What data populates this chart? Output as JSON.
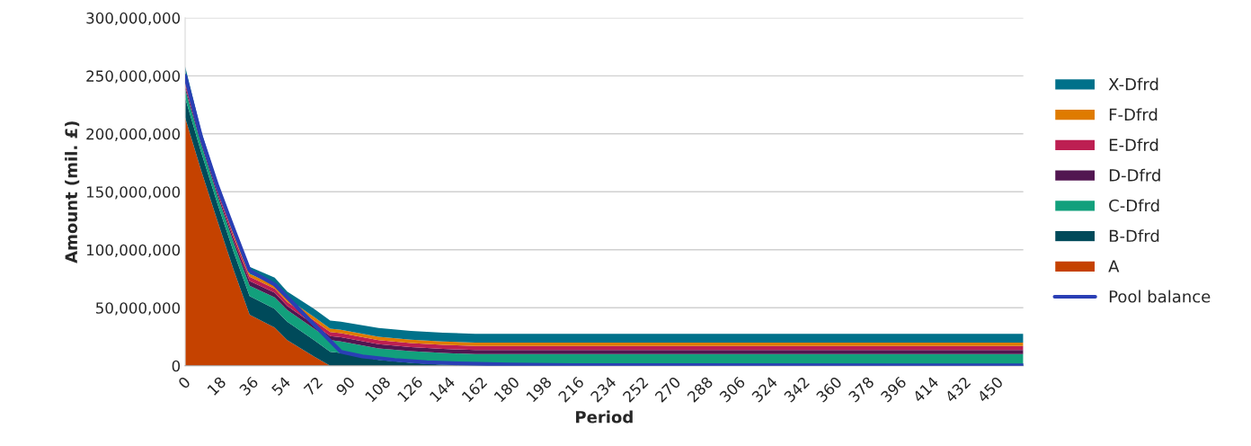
{
  "chart_data": {
    "type": "area",
    "stacked": true,
    "xlabel": "Period",
    "ylabel": "Amount (mil. £)",
    "x": [
      0,
      9,
      18,
      27,
      36,
      50,
      57,
      72,
      81,
      87,
      108,
      126,
      144,
      162,
      468
    ],
    "xlim": [
      0,
      468
    ],
    "xticks": [
      0,
      18,
      36,
      54,
      72,
      90,
      108,
      126,
      144,
      162,
      180,
      198,
      216,
      234,
      252,
      270,
      288,
      306,
      324,
      342,
      360,
      378,
      396,
      414,
      432,
      450
    ],
    "ylim": [
      0,
      300000000
    ],
    "yticks": [
      {
        "value": 0,
        "label": "0"
      },
      {
        "value": 50000000,
        "label": "50,000,000"
      },
      {
        "value": 100000000,
        "label": "100,000,000"
      },
      {
        "value": 150000000,
        "label": "150,000,000"
      },
      {
        "value": 200000000,
        "label": "200,000,000"
      },
      {
        "value": 250000000,
        "label": "250,000,000"
      },
      {
        "value": 300000000,
        "label": "300,000,000"
      }
    ],
    "grid": "y",
    "legend": "right",
    "series": [
      {
        "name": "A",
        "color": "#c54200",
        "values": [
          214000000,
          168000000,
          125000000,
          83000000,
          44000000,
          33000000,
          22000000,
          8000000,
          0,
          0,
          0,
          0,
          0,
          0,
          0
        ]
      },
      {
        "name": "B-Dfrd",
        "color": "#004a5a",
        "values": [
          17000000,
          16000000,
          15000000,
          15500000,
          16000000,
          16000000,
          16000000,
          14000000,
          12000000,
          11000000,
          5000000,
          2500000,
          1000000,
          0,
          0
        ]
      },
      {
        "name": "C-Dfrd",
        "color": "#12a07c",
        "values": [
          7500000,
          7000000,
          7000000,
          8000000,
          9000000,
          10000000,
          10000000,
          10000000,
          10000000,
          10000000,
          10000000,
          10000000,
          10000000,
          10000000,
          10000000
        ]
      },
      {
        "name": "D-Dfrd",
        "color": "#521651",
        "values": [
          2500000,
          2500000,
          2500000,
          3000000,
          4000000,
          4000000,
          3500000,
          3500000,
          3500000,
          3500000,
          3500000,
          3500000,
          3500000,
          3500000,
          3500000
        ]
      },
      {
        "name": "E-Dfrd",
        "color": "#bd1f52",
        "values": [
          2500000,
          2500000,
          2500000,
          3000000,
          3700000,
          3500000,
          3500000,
          3500000,
          3500000,
          3500000,
          3500000,
          3500000,
          3500000,
          3500000,
          3500000
        ]
      },
      {
        "name": "F-Dfrd",
        "color": "#df7b00",
        "values": [
          2000000,
          2000000,
          2000000,
          2500000,
          2600000,
          3000000,
          3000000,
          3000000,
          3000000,
          3000000,
          3000000,
          3000000,
          3000000,
          3000000,
          3000000
        ]
      },
      {
        "name": "X-Dfrd",
        "color": "#00718a",
        "values": [
          12500000,
          4000000,
          4000000,
          5000000,
          6000000,
          6500000,
          6000000,
          7000000,
          7000000,
          7000000,
          7500000,
          7500000,
          7500000,
          7500000,
          7500000
        ]
      },
      {
        "name": "Pool balance",
        "type": "line",
        "color": "#2a3fb5",
        "x": [
          0,
          9,
          18,
          27,
          36,
          50,
          87,
          99,
          117,
          135,
          153,
          180,
          216,
          468
        ],
        "values": [
          250000000,
          197000000,
          155000000,
          118000000,
          82000000,
          70000000,
          12000000,
          8000000,
          5000000,
          3000000,
          2000000,
          1000000,
          500000,
          300000
        ]
      }
    ]
  }
}
